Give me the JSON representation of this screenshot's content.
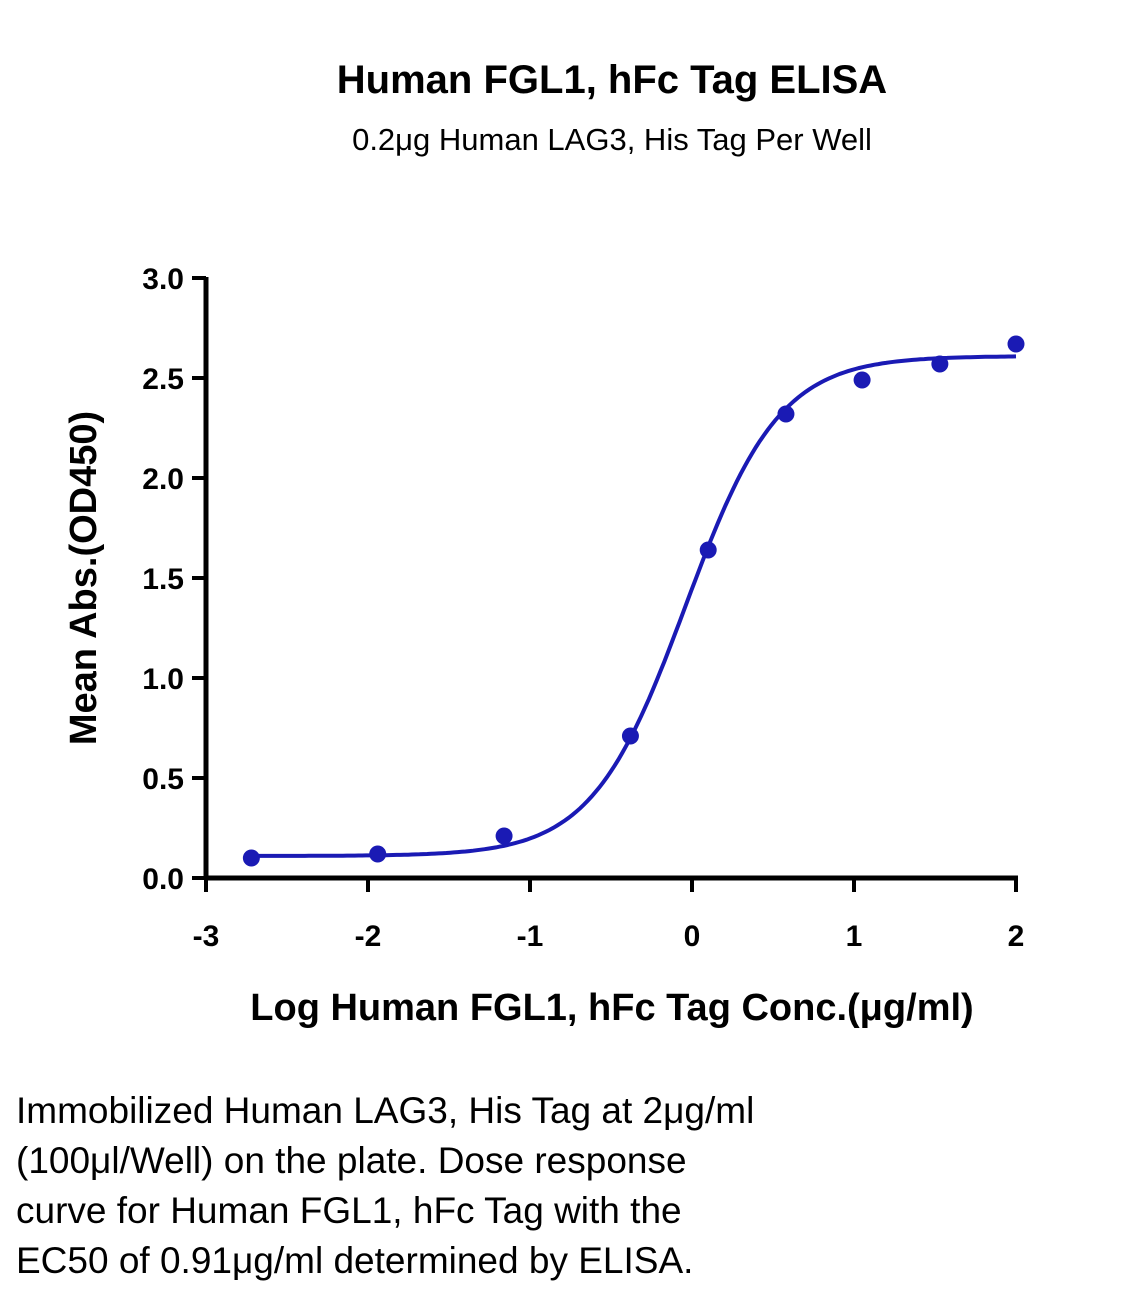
{
  "chart_data": {
    "type": "scatter",
    "title": "Human FGL1, hFc Tag ELISA",
    "subtitle": "0.2μg Human LAG3, His Tag Per Well",
    "xlabel": "Log Human FGL1, hFc Tag Conc.(μg/ml)",
    "ylabel": "Mean Abs.(OD450)",
    "xlim": [
      -3,
      2
    ],
    "ylim": [
      0,
      3.0
    ],
    "x_ticks": [
      "-3",
      "-2",
      "-1",
      "0",
      "1",
      "2"
    ],
    "y_ticks": [
      "0.0",
      "0.5",
      "1.0",
      "1.5",
      "2.0",
      "2.5",
      "3.0"
    ],
    "grid": false,
    "series": [
      {
        "points": [
          {
            "x": -2.72,
            "y": 0.1
          },
          {
            "x": -1.94,
            "y": 0.12
          },
          {
            "x": -1.16,
            "y": 0.21
          },
          {
            "x": -0.38,
            "y": 0.71
          },
          {
            "x": 0.1,
            "y": 1.64
          },
          {
            "x": 0.58,
            "y": 2.32
          },
          {
            "x": 1.05,
            "y": 2.49
          },
          {
            "x": 1.53,
            "y": 2.57
          },
          {
            "x": 2.0,
            "y": 2.67
          }
        ],
        "color": "#1a1ab4",
        "fit": {
          "model": "4PL",
          "bottom": 0.11,
          "top": 2.61,
          "log_ec50": -0.04,
          "hill": 1.5
        }
      }
    ]
  },
  "caption": {
    "lines": [
      "Immobilized Human LAG3, His Tag at 2μg/ml",
      "(100μl/Well) on the plate. Dose response",
      "curve for Human FGL1, hFc Tag with the",
      "EC50 of 0.91μg/ml determined by ELISA."
    ]
  }
}
